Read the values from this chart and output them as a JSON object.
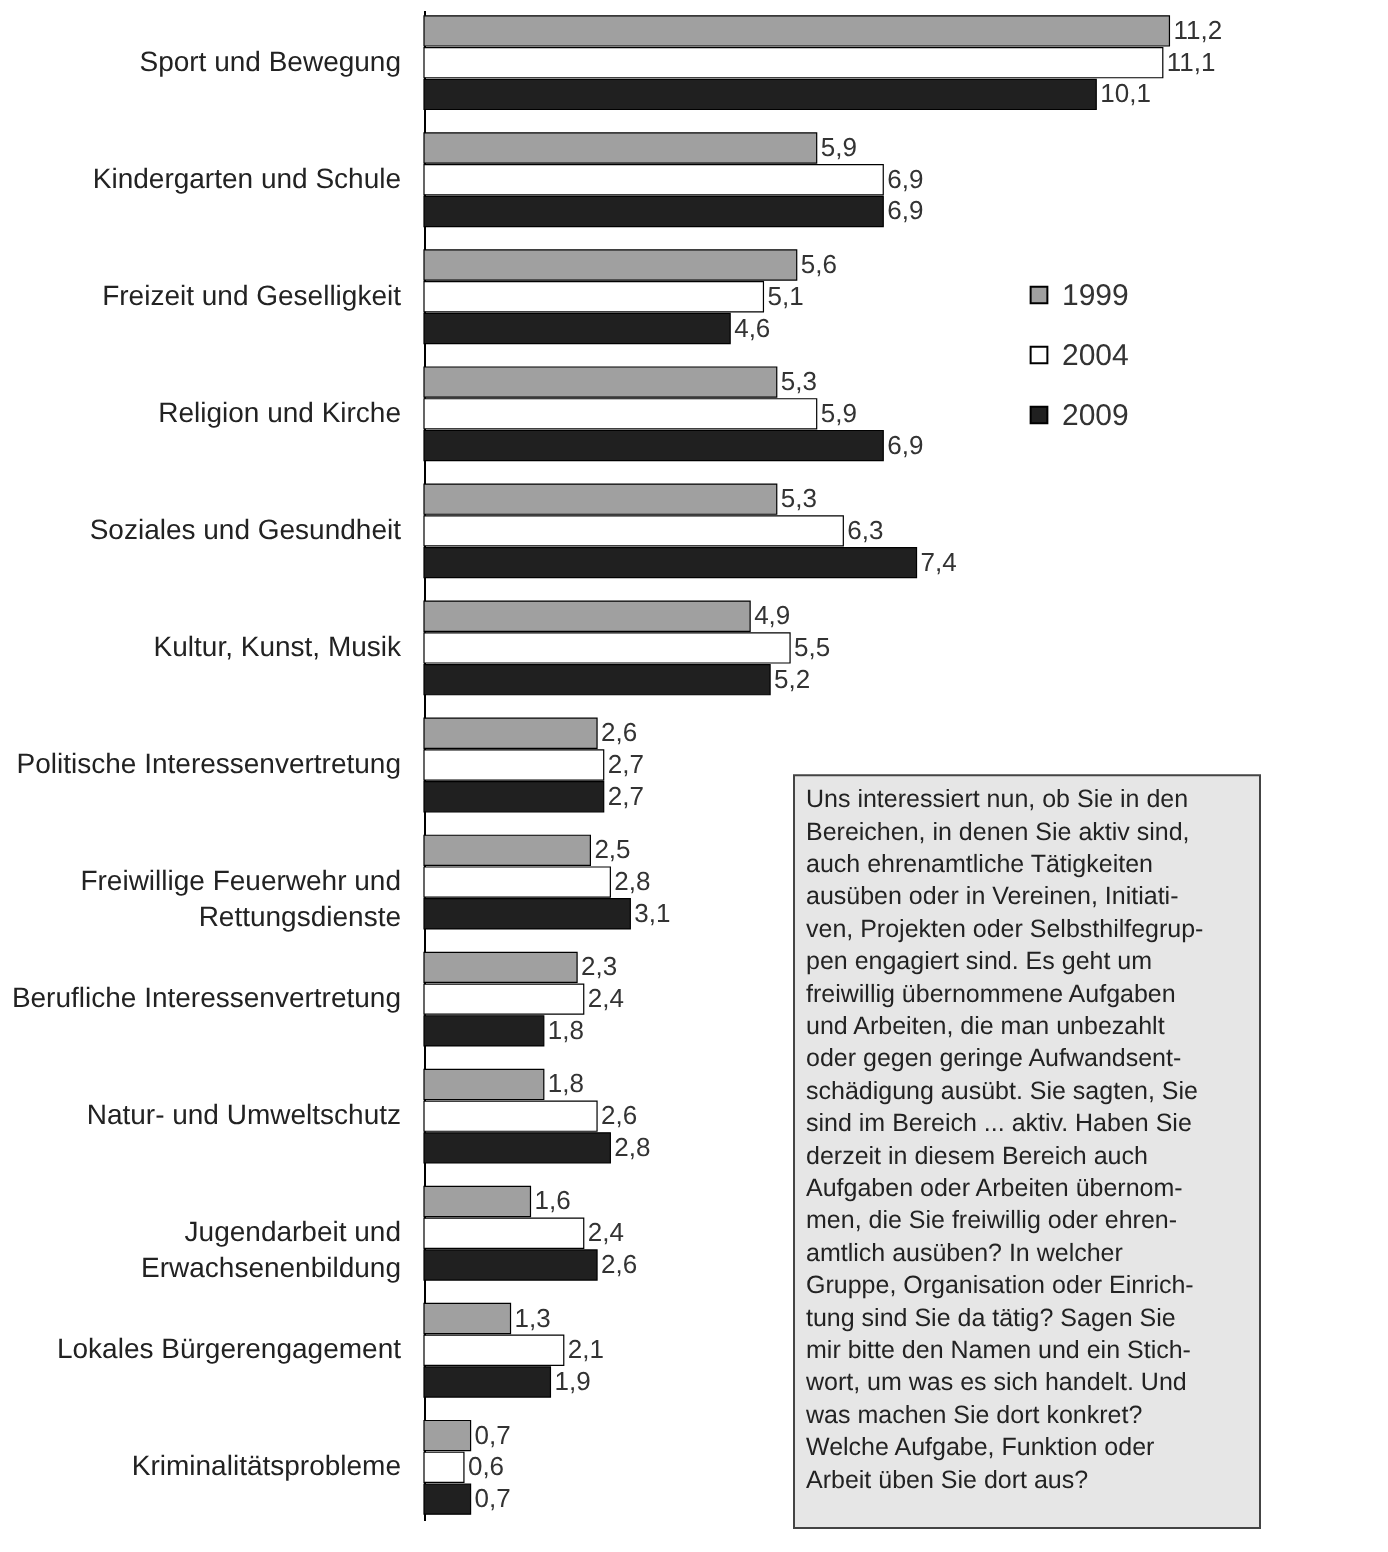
{
  "chart_data": {
    "type": "bar",
    "orientation": "horizontal",
    "categories": [
      "Sport und Bewegung",
      "Kindergarten und Schule",
      "Freizeit und Geselligkeit",
      "Religion und Kirche",
      "Soziales und Gesundheit",
      "Kultur, Kunst, Musik",
      "Politische Interessenvertretung",
      "Freiwillige Feuerwehr und\nRettungsdienste",
      "Berufliche Interessenvertretung",
      "Natur- und Umweltschutz",
      "Jugendarbeit und\nErwachsenenbildung",
      "Lokales Bürgerengagement",
      "Kriminalitätsprobleme"
    ],
    "series": [
      {
        "name": "1999",
        "color": "#a0a0a0",
        "values": [
          11.2,
          5.9,
          5.6,
          5.3,
          5.3,
          4.9,
          2.6,
          2.5,
          2.3,
          1.8,
          1.6,
          1.3,
          0.7
        ],
        "value_labels": [
          "11,2",
          "5,9",
          "5,6",
          "5,3",
          "5,3",
          "4,9",
          "2,6",
          "2,5",
          "2,3",
          "1,8",
          "1,6",
          "1,3",
          "0,7"
        ]
      },
      {
        "name": "2004",
        "color": "#ffffff",
        "values": [
          11.1,
          6.9,
          5.1,
          5.9,
          6.3,
          5.5,
          2.7,
          2.8,
          2.4,
          2.6,
          2.4,
          2.1,
          0.6
        ],
        "value_labels": [
          "11,1",
          "6,9",
          "5,1",
          "5,9",
          "6,3",
          "5,5",
          "2,7",
          "2,8",
          "2,4",
          "2,6",
          "2,4",
          "2,1",
          "0,6"
        ]
      },
      {
        "name": "2009",
        "color": "#202020",
        "values": [
          10.1,
          6.9,
          4.6,
          6.9,
          7.4,
          5.2,
          2.7,
          3.1,
          1.8,
          2.8,
          2.6,
          1.9,
          0.7
        ],
        "value_labels": [
          "10,1",
          "6,9",
          "4,6",
          "6,9",
          "7,4",
          "5,2",
          "2,7",
          "3,1",
          "1,8",
          "2,8",
          "2,6",
          "1,9",
          "0,7"
        ]
      }
    ],
    "legend": "right",
    "annotations": [
      "Uns interessiert nun, ob Sie in den\nBereichen, in denen Sie aktiv sind,\nauch ehrenamtliche Tätigkeiten\nausüben oder in Vereinen, Initiati-\nven, Projekten oder Selbsthilfegrup-\npen engagiert sind. Es geht um\nfreiwillig übernommene Aufgaben\nund Arbeiten, die man unbezahlt\noder gegen geringe Aufwandsent-\nschädigung ausübt. Sie sagten, Sie\nsind im Bereich ... aktiv. Haben Sie\nderzeit in diesem Bereich auch\nAufgaben oder Arbeiten übernom-\nmen, die Sie freiwillig oder ehren-\namtlich ausüben? In welcher\nGruppe, Organisation oder Einrich-\ntung sind Sie da tätig? Sagen Sie\nmir bitte den Namen und ein Stich-\nwort, um was es sich handelt. Und\nwas machen Sie dort konkret?\nWelche Aufgabe, Funktion oder\nArbeit üben Sie dort aus?"
    ]
  }
}
